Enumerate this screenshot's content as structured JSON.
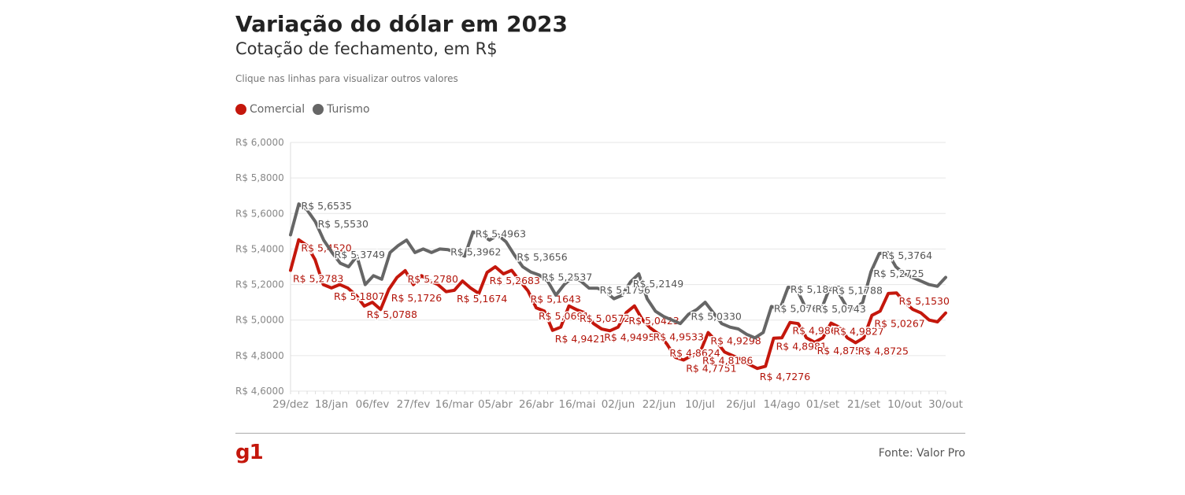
{
  "header": {
    "title": "Variação do dólar em 2023",
    "subtitle": "Cotação de fechamento, em R$",
    "hint": "Clique nas linhas para visualizar outros valores"
  },
  "legend": [
    {
      "label": "Comercial",
      "color": "#c4170c"
    },
    {
      "label": "Turismo",
      "color": "#666666"
    }
  ],
  "footer": {
    "logo": "g1",
    "source": "Fonte: Valor Pro"
  },
  "chart_data": {
    "type": "line",
    "ylim": [
      4.6,
      6.0
    ],
    "ytick_labels": [
      "R$ 4,6000",
      "R$ 4,8000",
      "R$ 5,0000",
      "R$ 5,2000",
      "R$ 5,4000",
      "R$ 5,6000",
      "R$ 5,8000",
      "R$ 6,0000"
    ],
    "yticks": [
      4.6,
      4.8,
      5.0,
      5.2,
      5.4,
      5.6,
      5.8,
      6.0
    ],
    "xtick_labels": [
      "29/dez",
      "18/jan",
      "06/fev",
      "27/fev",
      "16/mar",
      "05/abr",
      "26/abr",
      "16/mai",
      "02/jun",
      "22/jun",
      "10/jul",
      "26/jul",
      "14/ago",
      "01/set",
      "21/set",
      "10/out",
      "30/out"
    ],
    "grid": true,
    "legend_position": "top-left",
    "series": [
      {
        "name": "Comercial",
        "color": "#c4170c",
        "values": [
          5.28,
          5.452,
          5.42,
          5.34,
          5.2,
          5.1807,
          5.2,
          5.18,
          5.14,
          5.0788,
          5.1,
          5.06,
          5.1726,
          5.24,
          5.2783,
          5.2,
          5.25,
          5.22,
          5.2,
          5.16,
          5.1674,
          5.22,
          5.18,
          5.15,
          5.2683,
          5.3,
          5.26,
          5.28,
          5.22,
          5.1643,
          5.0691,
          5.05,
          4.9421,
          4.96,
          5.08,
          5.0572,
          5.04,
          4.98,
          4.9495,
          4.94,
          4.96,
          5.0423,
          5.08,
          5.0,
          4.9533,
          4.92,
          4.8624,
          4.79,
          4.7751,
          4.8,
          4.8186,
          4.9298,
          4.88,
          4.82,
          4.8,
          4.78,
          4.75,
          4.7276,
          4.74,
          4.8981,
          4.9,
          4.9868,
          4.98,
          4.9,
          4.875,
          4.9,
          4.9827,
          4.96,
          4.9,
          4.8725,
          4.9,
          5.0267,
          5.05,
          5.15,
          5.153,
          5.1,
          5.06,
          5.04,
          5.0,
          4.99,
          5.04
        ],
        "labels": [
          {
            "text": "R$ 5,4520",
            "value": 5.452
          },
          {
            "text": "R$ 5,2780",
            "value": 5.278
          },
          {
            "text": "R$ 5,1807",
            "value": 5.1807
          },
          {
            "text": "R$ 5,0788",
            "value": 5.0788
          },
          {
            "text": "R$ 5,1726",
            "value": 5.1726
          },
          {
            "text": "R$ 5,2783",
            "value": 5.2783
          },
          {
            "text": "R$ 5,1674",
            "value": 5.1674
          },
          {
            "text": "R$ 5,2683",
            "value": 5.2683
          },
          {
            "text": "R$ 5,1643",
            "value": 5.1643
          },
          {
            "text": "R$ 5,0691",
            "value": 5.0691
          },
          {
            "text": "R$ 4,9421",
            "value": 4.9421
          },
          {
            "text": "R$ 5,0572",
            "value": 5.0572
          },
          {
            "text": "R$ 4,9495",
            "value": 4.9495
          },
          {
            "text": "R$ 5,0423",
            "value": 5.0423
          },
          {
            "text": "R$ 4,9533",
            "value": 4.9533
          },
          {
            "text": "R$ 4,8624",
            "value": 4.8624
          },
          {
            "text": "R$ 4,7751",
            "value": 4.7751
          },
          {
            "text": "R$ 4,9298",
            "value": 4.9298
          },
          {
            "text": "R$ 4,8186",
            "value": 4.8186
          },
          {
            "text": "R$ 4,7276",
            "value": 4.7276
          },
          {
            "text": "R$ 4,8981",
            "value": 4.8981
          },
          {
            "text": "R$ 4,9868",
            "value": 4.9868
          },
          {
            "text": "R$ 4,8750",
            "value": 4.875
          },
          {
            "text": "R$ 4,9827",
            "value": 4.9827
          },
          {
            "text": "R$ 4,8725",
            "value": 4.8725
          },
          {
            "text": "R$ 5,0267",
            "value": 5.0267
          },
          {
            "text": "R$ 5,1530",
            "value": 5.153
          }
        ]
      },
      {
        "name": "Turismo",
        "color": "#666666",
        "values": [
          5.48,
          5.6535,
          5.62,
          5.553,
          5.45,
          5.38,
          5.32,
          5.3,
          5.36,
          5.2,
          5.25,
          5.23,
          5.38,
          5.42,
          5.45,
          5.38,
          5.4,
          5.38,
          5.4,
          5.3962,
          5.38,
          5.36,
          5.4963,
          5.48,
          5.45,
          5.48,
          5.44,
          5.3656,
          5.3,
          5.27,
          5.2537,
          5.22,
          5.14,
          5.2,
          5.24,
          5.22,
          5.18,
          5.1796,
          5.16,
          5.12,
          5.14,
          5.2149,
          5.26,
          5.12,
          5.05,
          5.02,
          5.0,
          4.98,
          5.033,
          5.06,
          5.1,
          5.04,
          4.98,
          4.96,
          4.95,
          4.92,
          4.9,
          4.93,
          5.0768,
          5.06,
          5.1846,
          5.18,
          5.08,
          5.0743,
          5.06,
          5.1788,
          5.16,
          5.08,
          5.06,
          5.1,
          5.2725,
          5.3749,
          5.38,
          5.3,
          5.26,
          5.24,
          5.22,
          5.2,
          5.19,
          5.24
        ],
        "labels": [
          {
            "text": "R$ 5,6535",
            "value": 5.6535
          },
          {
            "text": "R$ 5,5530",
            "value": 5.553
          },
          {
            "text": "R$ 5,3764",
            "value": 5.3764
          },
          {
            "text": "R$ 5,3962",
            "value": 5.3962
          },
          {
            "text": "R$ 5,4963",
            "value": 5.4963
          },
          {
            "text": "R$ 5,3656",
            "value": 5.3656
          },
          {
            "text": "R$ 5,2537",
            "value": 5.2537
          },
          {
            "text": "R$ 5,1796",
            "value": 5.1796
          },
          {
            "text": "R$ 5,2149",
            "value": 5.2149
          },
          {
            "text": "R$ 5,0330",
            "value": 5.033
          },
          {
            "text": "R$ 5,0768",
            "value": 5.0768
          },
          {
            "text": "R$ 5,1846",
            "value": 5.1846
          },
          {
            "text": "R$ 5,0743",
            "value": 5.0743
          },
          {
            "text": "R$ 5,1788",
            "value": 5.1788
          },
          {
            "text": "R$ 5,2725",
            "value": 5.2725
          },
          {
            "text": "R$ 5,3749",
            "value": 5.3749
          }
        ]
      }
    ]
  }
}
